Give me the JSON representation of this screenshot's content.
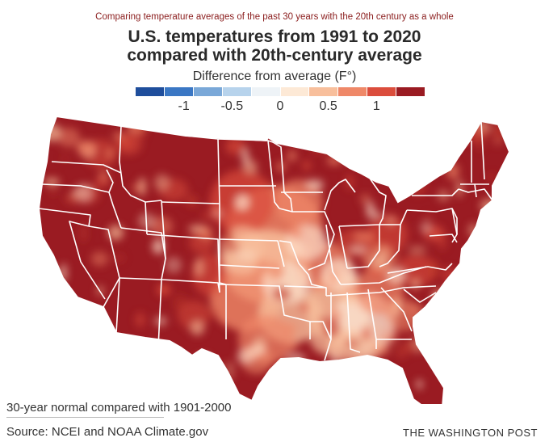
{
  "header": {
    "supertitle": "Comparing temperature averages of the past 30 years with the 20th century as a whole",
    "title_line1": "U.S. temperatures from 1991 to 2020",
    "title_line2": "compared with 20th-century average"
  },
  "legend": {
    "title": "Difference from average (F°)",
    "swatches": [
      "#1f4e9c",
      "#3a77c4",
      "#7aa8d8",
      "#b7d3ec",
      "#eef3f7",
      "#fde9d6",
      "#f8bf9c",
      "#ef8868",
      "#db4d3c",
      "#9a1b22"
    ],
    "ticks": [
      {
        "label": "-1",
        "value": -1
      },
      {
        "label": "-0.5",
        "value": -0.5
      },
      {
        "label": "0",
        "value": 0
      },
      {
        "label": "0.5",
        "value": 0.5
      },
      {
        "label": "1",
        "value": 1
      }
    ],
    "range": [
      -1.5,
      1.5
    ]
  },
  "map": {
    "name": "Contiguous United States",
    "base_color": "#9a1b22",
    "state_border_color": "#ffffff",
    "warming_hotspots": [
      "#c23a2e",
      "#db4d3c",
      "#ef8868",
      "#f8bf9c",
      "#fde4cf"
    ]
  },
  "footer": {
    "note": "30-year normal compared with 1901-2000",
    "source": "Source: NCEI and NOAA Climate.gov",
    "credit": "THE WASHINGTON POST"
  }
}
